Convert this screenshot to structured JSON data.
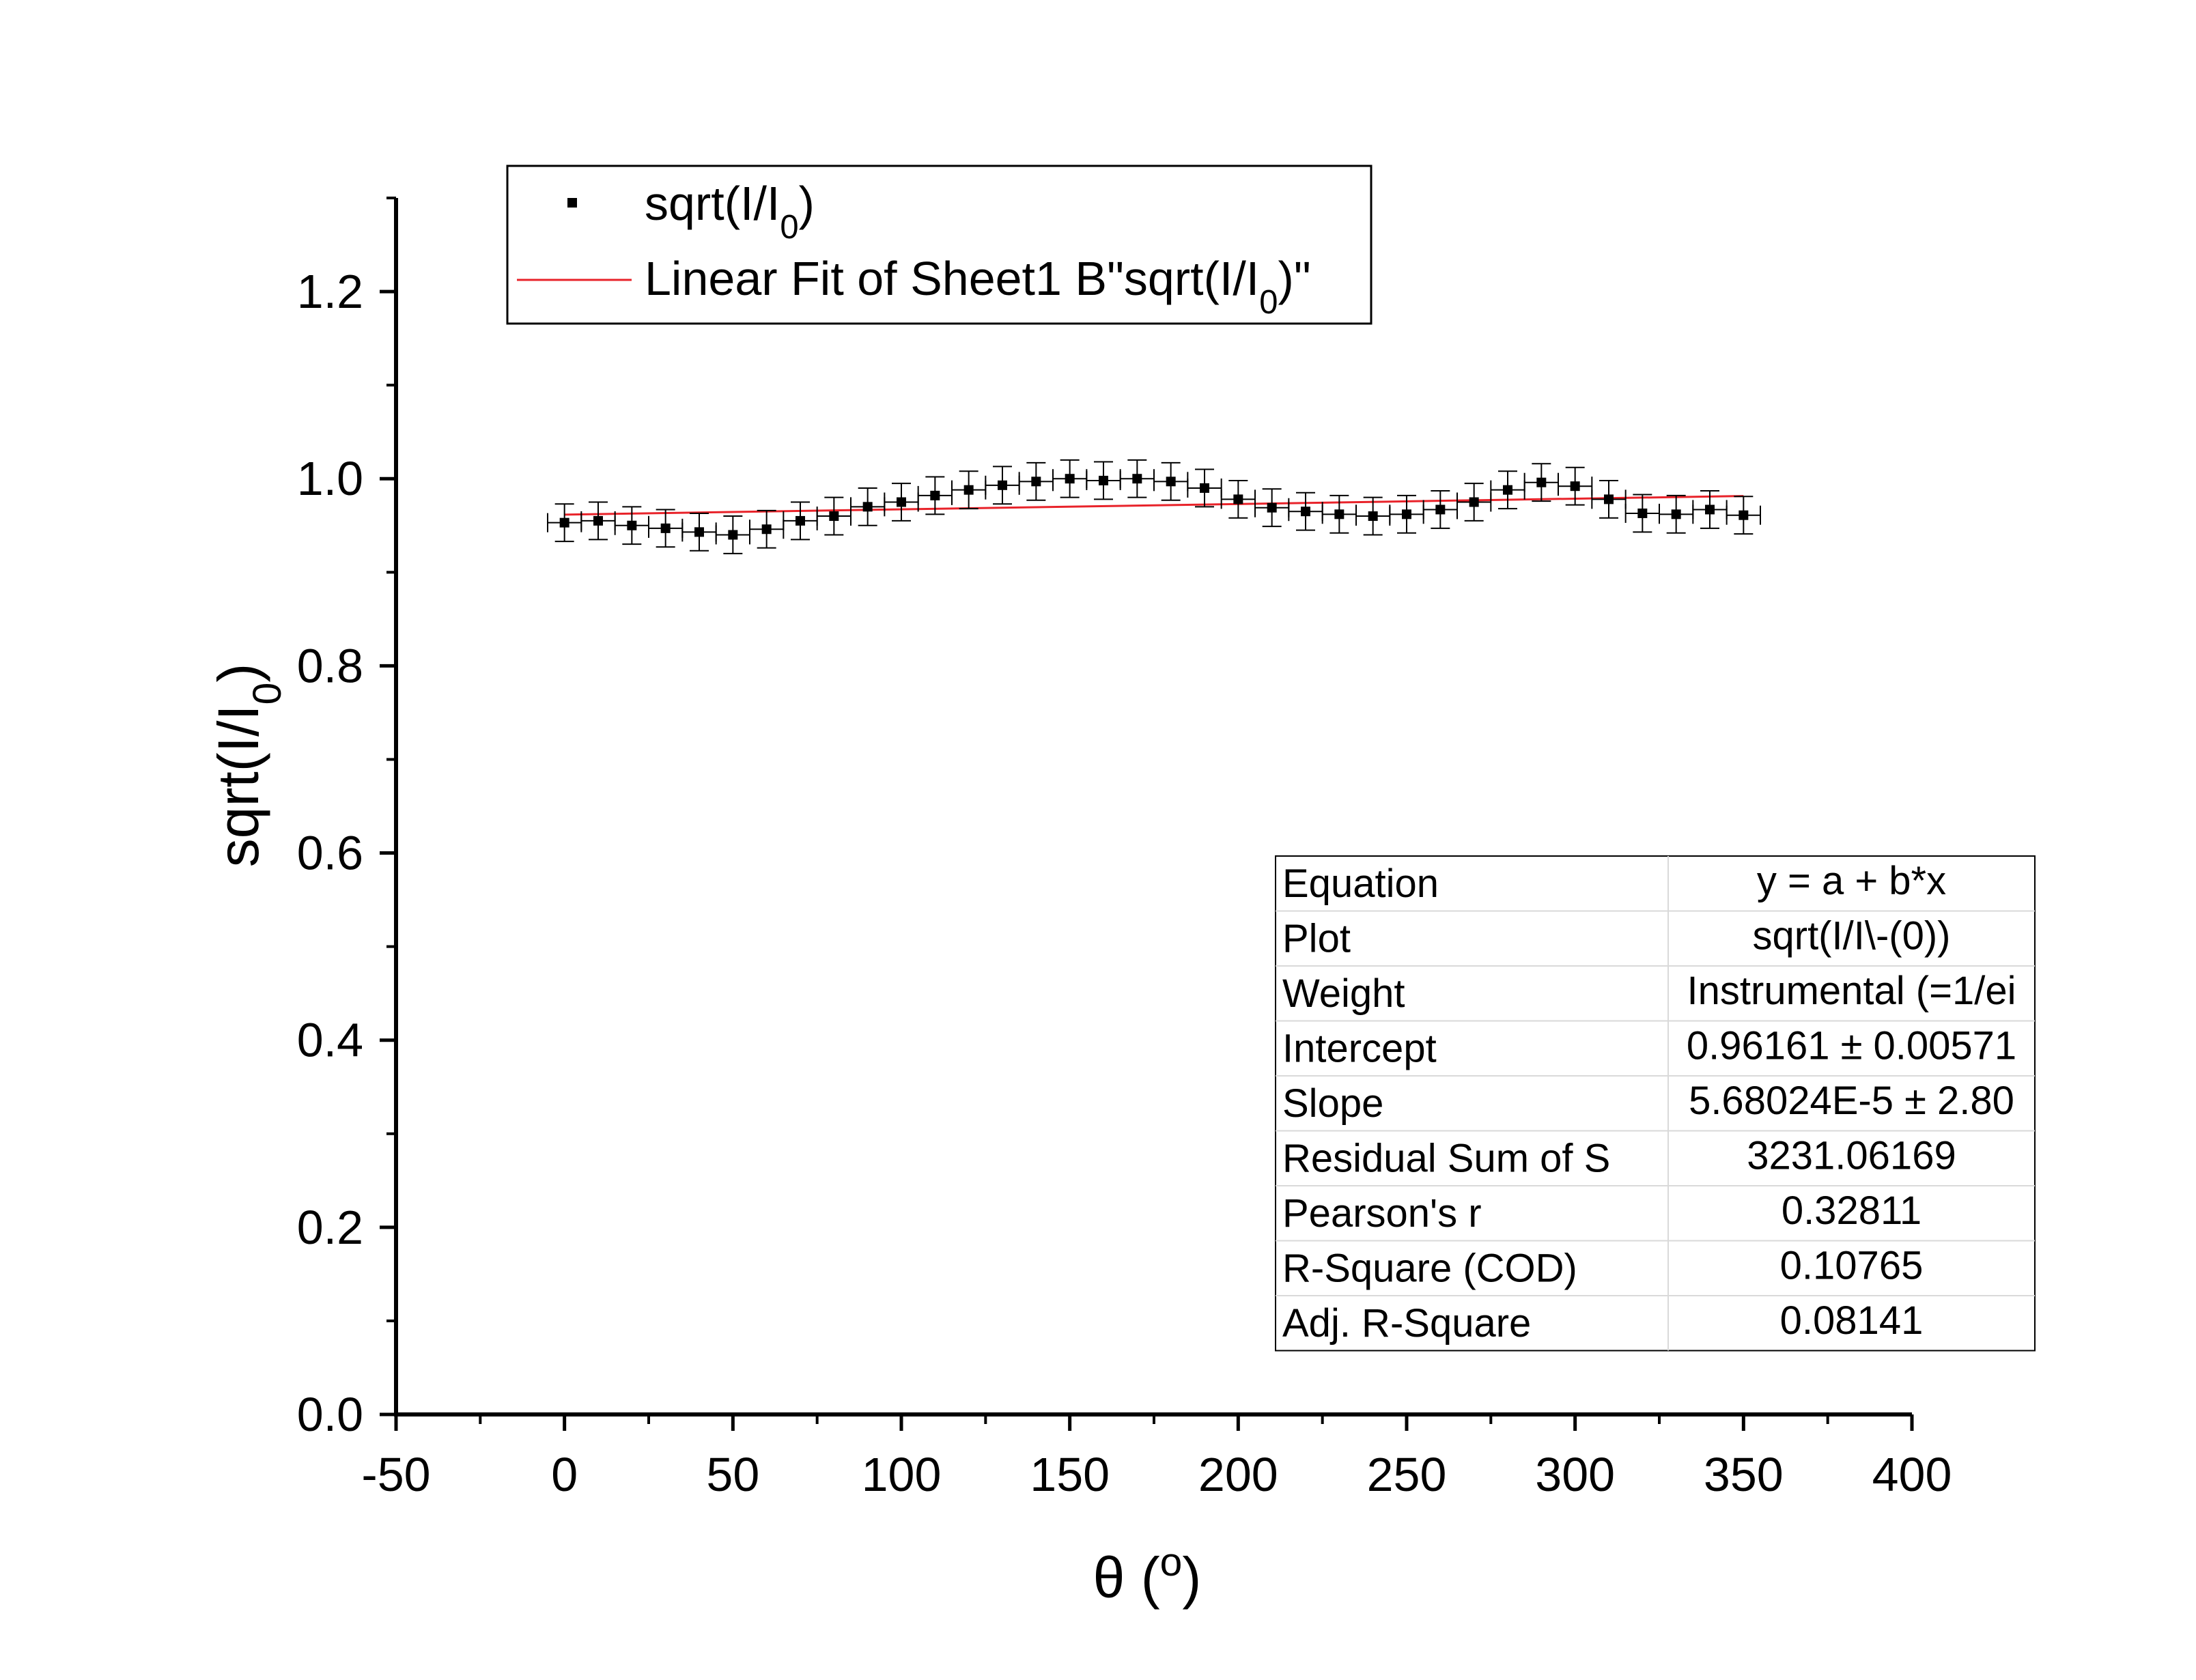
{
  "chart_data": {
    "type": "scatter",
    "xlabel": "θ (º)",
    "ylabel": "sqrt(I/I0)",
    "xlim": [
      -50,
      400
    ],
    "ylim": [
      0.0,
      1.3
    ],
    "x_ticks": [
      -50,
      0,
      50,
      100,
      150,
      200,
      250,
      300,
      350,
      400
    ],
    "y_ticks": [
      0.0,
      0.2,
      0.4,
      0.6,
      0.8,
      1.0,
      1.2
    ],
    "x_tick_labels": [
      "-50",
      "0",
      "50",
      "100",
      "150",
      "200",
      "250",
      "300",
      "350",
      "400"
    ],
    "y_tick_labels": [
      "0.0",
      "0.2",
      "0.4",
      "0.6",
      "0.8",
      "1.0",
      "1.2"
    ],
    "grid": false,
    "legend_position": "top-left",
    "series": [
      {
        "name": "sqrt(I/I0)",
        "kind": "scatter",
        "color": "#000000",
        "x_error": 5,
        "y_error": 0.02,
        "x": [
          0,
          10,
          20,
          30,
          40,
          50,
          60,
          70,
          80,
          90,
          100,
          110,
          120,
          130,
          140,
          150,
          160,
          170,
          180,
          190,
          200,
          210,
          220,
          230,
          240,
          250,
          260,
          270,
          280,
          290,
          300,
          310,
          320,
          330,
          340,
          350
        ],
        "y": [
          0.953,
          0.955,
          0.95,
          0.947,
          0.943,
          0.94,
          0.946,
          0.955,
          0.96,
          0.97,
          0.975,
          0.982,
          0.988,
          0.993,
          0.997,
          1.0,
          0.998,
          1.0,
          0.997,
          0.99,
          0.978,
          0.969,
          0.965,
          0.962,
          0.96,
          0.962,
          0.967,
          0.975,
          0.988,
          0.996,
          0.992,
          0.978,
          0.963,
          0.962,
          0.967,
          0.961
        ]
      },
      {
        "name": "Linear Fit of Sheet1 B\"sqrt(I/I0)\"",
        "kind": "line",
        "color": "#e8232a",
        "x": [
          0,
          350
        ],
        "y": [
          0.96161,
          0.98149
        ]
      }
    ],
    "legend": {
      "entries": [
        {
          "text": "sqrt(I/I",
          "sub": "0",
          "after": ")"
        },
        {
          "text": "Linear Fit of Sheet1 B\"sqrt(I/I",
          "sub": "0",
          "after": ")\""
        }
      ]
    },
    "stats_table": [
      [
        "Equation",
        "y = a + b*x"
      ],
      [
        "Plot",
        "sqrt(I/I\\-(0))"
      ],
      [
        "Weight",
        "Instrumental (=1/ei"
      ],
      [
        "Intercept",
        "0.96161 ± 0.00571"
      ],
      [
        "Slope",
        "5.68024E-5 ± 2.80"
      ],
      [
        "Residual Sum of S",
        "3231.06169"
      ],
      [
        "Pearson's r",
        "0.32811"
      ],
      [
        "R-Square (COD)",
        "0.10765"
      ],
      [
        "Adj. R-Square",
        "0.08141"
      ]
    ],
    "ylabel_parts": {
      "text": "sqrt(I/I",
      "sub": "0",
      "after": ")"
    },
    "xlabel_parts": {
      "text": "θ (",
      "sup": "o",
      "after": ")"
    }
  }
}
